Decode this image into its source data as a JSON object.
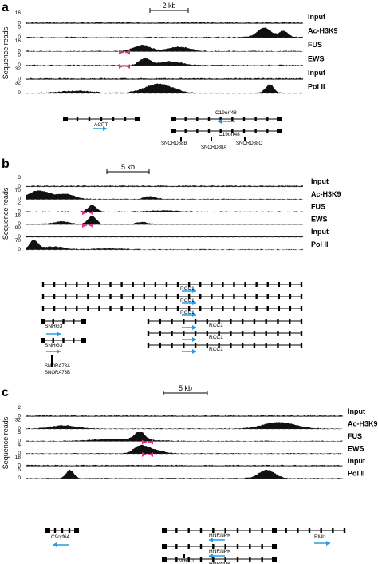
{
  "axis_label": "Sequence reads",
  "colors": {
    "signal": "#111111",
    "arrow": "#2b9be0",
    "pink": "#d63a8c"
  },
  "panels": [
    {
      "letter": "a",
      "scale_label": "2 kb",
      "tracks": [
        {
          "name": "Input",
          "ymax": "16",
          "ymin": "0",
          "bold": true,
          "shape": "input"
        },
        {
          "name": "Ac-H3K9",
          "ymax": "5",
          "ymin": "0",
          "bold": true,
          "shape": "ach3k9_a"
        },
        {
          "name": "FUS",
          "ymax": "16",
          "ymin": "0",
          "bold": true,
          "shape": "fus_a"
        },
        {
          "name": "EWS",
          "ymax": "5",
          "ymin": "0",
          "bold": true,
          "shape": "ews_a"
        },
        {
          "name": "Input",
          "ymax": "32",
          "ymin": "0",
          "bold": true,
          "shape": "input"
        },
        {
          "name": "Pol II",
          "ymax": "32",
          "ymin": "0",
          "bold": true,
          "shape": "pol_a"
        }
      ],
      "genes": [
        {
          "label": "ACPT"
        },
        {
          "label": "C19orf48"
        },
        {
          "label": "C19orf48"
        }
      ],
      "snords": [
        "SNORD88B",
        "SNORD88A",
        "SNORD88C"
      ]
    },
    {
      "letter": "b",
      "scale_label": "5 kb",
      "tracks": [
        {
          "name": "Input",
          "ymax": "3",
          "ymin": "0",
          "bold": true,
          "shape": "input"
        },
        {
          "name": "Ac-H3K9",
          "ymax": "70",
          "ymin": "0",
          "bold": true,
          "shape": "ach3k9_b"
        },
        {
          "name": "FUS",
          "ymax": "2",
          "ymin": "0",
          "bold": true,
          "shape": "fus_b"
        },
        {
          "name": "EWS",
          "ymax": "16",
          "ymin": "0",
          "bold": true,
          "shape": "ews_b"
        },
        {
          "name": "Input",
          "ymax": "90",
          "ymin": "0",
          "bold": true,
          "shape": "input"
        },
        {
          "name": "Pol II",
          "ymax": "70",
          "ymin": "0",
          "bold": true,
          "shape": "pol_b"
        }
      ],
      "genes": [
        {
          "label": "RCC1"
        },
        {
          "label": "RCC1"
        },
        {
          "label": "RCC1"
        },
        {
          "label": "RCC1"
        },
        {
          "label": "RCC1"
        },
        {
          "label": "RCC1"
        },
        {
          "label": "SNHG3"
        },
        {
          "label": "SNHG3"
        }
      ],
      "snords": [
        "SNORA73A",
        "SNORA73B"
      ]
    },
    {
      "letter": "c",
      "scale_label": "5 kb",
      "tracks": [
        {
          "name": "Input",
          "ymax": "2",
          "ymin": "0",
          "bold": true,
          "shape": "input"
        },
        {
          "name": "Ac-H3K9",
          "ymax": "32",
          "ymin": "0",
          "bold": true,
          "shape": "ach3k9_c"
        },
        {
          "name": "FUS",
          "ymax": "5",
          "ymin": "0",
          "bold": true,
          "shape": "fus_c"
        },
        {
          "name": "EWS",
          "ymax": "4",
          "ymin": "0",
          "bold": true,
          "shape": "ews_c"
        },
        {
          "name": "Input",
          "ymax": "18",
          "ymin": "0",
          "bold": true,
          "shape": "input"
        },
        {
          "name": "Pol II",
          "ymax": "5",
          "ymin": "0",
          "bold": true,
          "shape": "pol_c"
        }
      ],
      "genes": [
        {
          "label": "C9orf64"
        },
        {
          "label": "HNRNPK"
        },
        {
          "label": "HNRNPK"
        },
        {
          "label": "HNRNPK"
        },
        {
          "label": "RMI1"
        }
      ],
      "snords": [
        "MIR7-1"
      ]
    }
  ]
}
